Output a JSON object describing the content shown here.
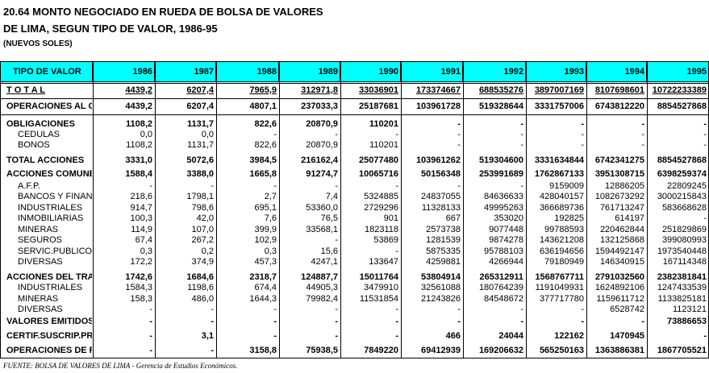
{
  "header": {
    "title_line1": "20.64  MONTO NEGOCIADO EN RUEDA DE BOLSA DE VALORES",
    "title_line2": "DE LIMA, SEGUN TIPO DE VALOR, 1986-95",
    "unit": "(NUEVOS SOLES)"
  },
  "table": {
    "columns": [
      "TIPO DE VALOR",
      "1986",
      "1987",
      "1988",
      "1989",
      "1990",
      "1991",
      "1992",
      "1993",
      "1994",
      "1995"
    ],
    "rows": [
      {
        "label": "T O T A L",
        "bold": true,
        "underline": true,
        "values": [
          "4439,2",
          "6207,4",
          "7965,9",
          "312971,8",
          "33036901",
          "173374667",
          "688535276",
          "3897007169",
          "8107698601",
          "10722233389"
        ]
      },
      {
        "label": "OPERACIONES AL CO",
        "bold": true,
        "values": [
          "4439,2",
          "6207,4",
          "4807,1",
          "237033,3",
          "25187681",
          "103961728",
          "519328644",
          "3331757006",
          "6743812220",
          "8854527868"
        ]
      },
      {
        "label": "OBLIGACIONES",
        "bold": true,
        "values": [
          "1108,2",
          "1131,7",
          "822,6",
          "20870,9",
          "110201",
          "-",
          "-",
          "-",
          "-",
          "-"
        ]
      },
      {
        "label": "CEDULAS",
        "values": [
          "0,0",
          "0,0",
          "-",
          "-",
          "-",
          "-",
          "-",
          "-",
          "-",
          "-"
        ]
      },
      {
        "label": "BONOS",
        "values": [
          "1108,2",
          "1131,7",
          "822,6",
          "20870,9",
          "110201",
          "-",
          "-",
          "-",
          "-",
          "-"
        ]
      },
      {
        "label": "TOTAL ACCIONES",
        "bold": true,
        "values": [
          "3331,0",
          "5072,6",
          "3984,5",
          "216162,4",
          "25077480",
          "103961262",
          "519304600",
          "3331634844",
          "6742341275",
          "8854527868"
        ]
      },
      {
        "label": "ACCIONES COMUNES",
        "bold": true,
        "values": [
          "1588,4",
          "3388,0",
          "1665,8",
          "91274,7",
          "10065716",
          "50156348",
          "253991689",
          "1762867133",
          "3951308715",
          "6398259374"
        ]
      },
      {
        "label": "A.F.P.",
        "values": [
          "-",
          "-",
          "-",
          "-",
          "-",
          "-",
          "-",
          "9159009",
          "12886205",
          "22809245"
        ]
      },
      {
        "label": "BANCOS Y FINANC",
        "values": [
          "218,6",
          "1798,1",
          "2,7",
          "7,4",
          "5324885",
          "24837055",
          "84636633",
          "428040157",
          "1082673292",
          "3000215843"
        ]
      },
      {
        "label": "INDUSTRIALES",
        "values": [
          "914,7",
          "798,6",
          "695,1",
          "53360,0",
          "2729296",
          "11328133",
          "49995263",
          "366689736",
          "761713247",
          "583668628"
        ]
      },
      {
        "label": "INMOBILIARIAS",
        "values": [
          "100,3",
          "42,0",
          "7,6",
          "76,5",
          "901",
          "667",
          "353020",
          "192825",
          "614197",
          "-"
        ]
      },
      {
        "label": "MINERAS",
        "values": [
          "114,9",
          "107,0",
          "399,9",
          "33568,1",
          "1823118",
          "2573738",
          "9077448",
          "99788593",
          "220462844",
          "251829869"
        ]
      },
      {
        "label": "SEGUROS",
        "values": [
          "67,4",
          "267,2",
          "102,9",
          "-",
          "53869",
          "1281539",
          "9874278",
          "143621208",
          "132125868",
          "399080993"
        ]
      },
      {
        "label": "SERVIC.PUBLICOS",
        "values": [
          "0,3",
          "0,2",
          "0,3",
          "15,6",
          "-",
          "5875335",
          "95788103",
          "636194656",
          "1594492147",
          "1973540448"
        ]
      },
      {
        "label": "DIVERSAS",
        "values": [
          "172,2",
          "374,9",
          "457,3",
          "4247,1",
          "133647",
          "4259881",
          "4266944",
          "79180949",
          "146340915",
          "167114348"
        ]
      },
      {
        "label": "ACCIONES DEL TRAI",
        "bold": true,
        "values": [
          "1742,6",
          "1684,6",
          "2318,7",
          "124887,7",
          "15011764",
          "53804914",
          "265312911",
          "1568767711",
          "2791032560",
          "2382381841"
        ]
      },
      {
        "label": "INDUSTRIALES",
        "values": [
          "1584,3",
          "1198,6",
          "674,4",
          "44905,3",
          "3479910",
          "32561088",
          "180764239",
          "1191049931",
          "1624892106",
          "1247433539"
        ]
      },
      {
        "label": "MINERAS",
        "values": [
          "158,3",
          "486,0",
          "1644,3",
          "79982,4",
          "11531854",
          "21243826",
          "84548672",
          "377717780",
          "1159611712",
          "1133825181"
        ]
      },
      {
        "label": "DIVERSAS",
        "values": [
          "-",
          "-",
          "-",
          "-",
          "-",
          "-",
          "-",
          "-",
          "6528742",
          "1123121"
        ]
      },
      {
        "label": "VALORES EMITIDOS",
        "bold": true,
        "values": [
          "-",
          "-",
          "-",
          "-",
          "-",
          "-",
          "-",
          "-",
          "-",
          "73886653"
        ]
      },
      {
        "label": "CERTIF.SUSCRIP.PRI",
        "bold": true,
        "values": [
          "-",
          "3,1",
          "-",
          "-",
          "-",
          "466",
          "24044",
          "122162",
          "1470945",
          "-"
        ]
      },
      {
        "label": "OPERACIONES DE REF",
        "bold": true,
        "values": [
          "-",
          "-",
          "3158,8",
          "75938,5",
          "7849220",
          "69412939",
          "169206632",
          "565250163",
          "1363886381",
          "1867705521"
        ]
      }
    ]
  },
  "footer": {
    "source": "FUENTE: BOLSA DE VALORES DE LIMA - Gerencia de Estudios Económicos."
  }
}
